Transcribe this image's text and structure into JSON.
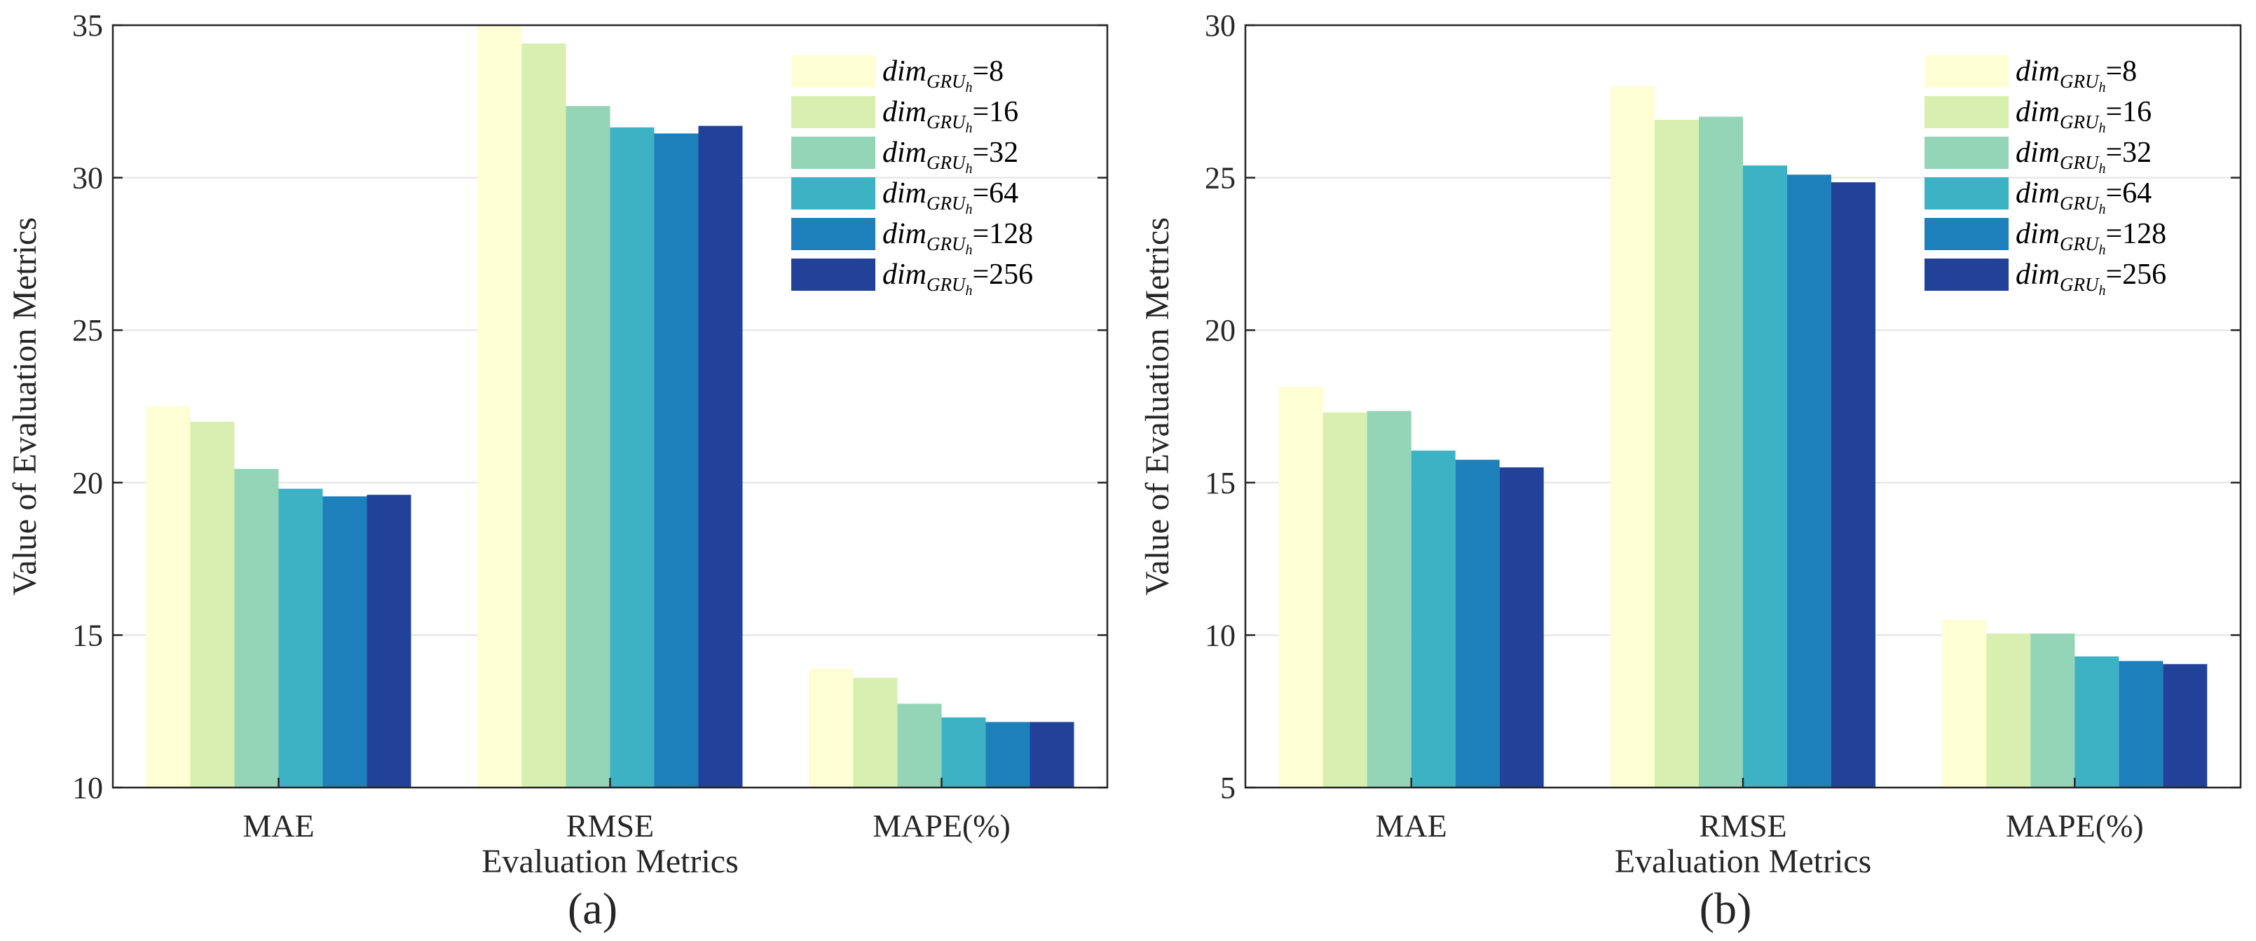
{
  "chart_data": [
    {
      "type": "bar",
      "panel_label": "(a)",
      "categories": [
        "MAE",
        "RMSE",
        "MAPE(%)"
      ],
      "xlabel": "Evaluation Metrics",
      "ylabel": "Value of Evaluation Metrics",
      "ylim": [
        10,
        35
      ],
      "yticks": [
        10,
        15,
        20,
        25,
        30,
        35
      ],
      "grid": true,
      "legend_position": "top-right",
      "series": [
        {
          "name": "dim_GRU_h=8",
          "legend_prefix": "dim",
          "legend_sub": "GRU",
          "legend_subsub": "h",
          "legend_value": "=8",
          "color": "#fdfed3",
          "values": [
            22.5,
            35.0,
            13.9
          ]
        },
        {
          "name": "dim_GRU_h=16",
          "legend_prefix": "dim",
          "legend_sub": "GRU",
          "legend_subsub": "h",
          "legend_value": "=16",
          "color": "#d8efb0",
          "values": [
            22.0,
            34.4,
            13.6
          ]
        },
        {
          "name": "dim_GRU_h=32",
          "legend_prefix": "dim",
          "legend_sub": "GRU",
          "legend_subsub": "h",
          "legend_value": "=32",
          "color": "#94d4b7",
          "values": [
            20.45,
            32.35,
            12.75
          ]
        },
        {
          "name": "dim_GRU_h=64",
          "legend_prefix": "dim",
          "legend_sub": "GRU",
          "legend_subsub": "h",
          "legend_value": "=64",
          "color": "#3db2c5",
          "values": [
            19.8,
            31.65,
            12.3
          ]
        },
        {
          "name": "dim_GRU_h=128",
          "legend_prefix": "dim",
          "legend_sub": "GRU",
          "legend_subsub": "h",
          "legend_value": "=128",
          "color": "#1d80ba",
          "values": [
            19.55,
            31.45,
            12.15
          ]
        },
        {
          "name": "dim_GRU_h=256",
          "legend_prefix": "dim",
          "legend_sub": "GRU",
          "legend_subsub": "h",
          "legend_value": "=256",
          "color": "#22429a",
          "values": [
            19.6,
            31.7,
            12.15
          ]
        }
      ]
    },
    {
      "type": "bar",
      "panel_label": "(b)",
      "categories": [
        "MAE",
        "RMSE",
        "MAPE(%)"
      ],
      "xlabel": "Evaluation Metrics",
      "ylabel": "Value of Evaluation Metrics",
      "ylim": [
        5,
        30
      ],
      "yticks": [
        5,
        10,
        15,
        20,
        25,
        30
      ],
      "grid": true,
      "legend_position": "top-right",
      "series": [
        {
          "name": "dim_GRU_h=8",
          "legend_prefix": "dim",
          "legend_sub": "GRU",
          "legend_subsub": "h",
          "legend_value": "=8",
          "color": "#fdfed3",
          "values": [
            18.15,
            28.0,
            10.5
          ]
        },
        {
          "name": "dim_GRU_h=16",
          "legend_prefix": "dim",
          "legend_sub": "GRU",
          "legend_subsub": "h",
          "legend_value": "=16",
          "color": "#d8efb0",
          "values": [
            17.3,
            26.9,
            10.05
          ]
        },
        {
          "name": "dim_GRU_h=32",
          "legend_prefix": "dim",
          "legend_sub": "GRU",
          "legend_subsub": "h",
          "legend_value": "=32",
          "color": "#94d4b7",
          "values": [
            17.35,
            27.0,
            10.05
          ]
        },
        {
          "name": "dim_GRU_h=64",
          "legend_prefix": "dim",
          "legend_sub": "GRU",
          "legend_subsub": "h",
          "legend_value": "=64",
          "color": "#3db2c5",
          "values": [
            16.05,
            25.4,
            9.3
          ]
        },
        {
          "name": "dim_GRU_h=128",
          "legend_prefix": "dim",
          "legend_sub": "GRU",
          "legend_subsub": "h",
          "legend_value": "=128",
          "color": "#1d80ba",
          "values": [
            15.75,
            25.1,
            9.15
          ]
        },
        {
          "name": "dim_GRU_h=256",
          "legend_prefix": "dim",
          "legend_sub": "GRU",
          "legend_subsub": "h",
          "legend_value": "=256",
          "color": "#22429a",
          "values": [
            15.5,
            24.85,
            9.05
          ]
        }
      ]
    }
  ]
}
